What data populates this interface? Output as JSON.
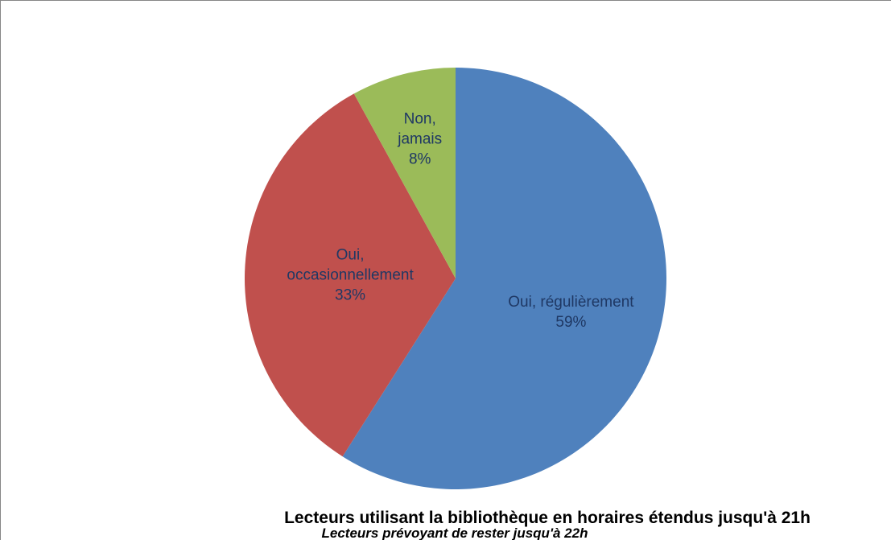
{
  "chart_data": {
    "type": "pie",
    "title": "Lecteurs utilisant la bibliothèque en horaires étendus jusqu'à 21h",
    "subtitle": "Lecteurs prévoyant de rester jusqu'à 22h",
    "categories": [
      "Oui, régulièrement",
      "Oui, occasionnellement",
      "Non, jamais"
    ],
    "values": [
      59,
      33,
      8
    ],
    "value_labels": [
      "59%",
      "33%",
      "8%"
    ],
    "colors": [
      "#4f81bd",
      "#c0504d",
      "#9bbb59"
    ]
  }
}
